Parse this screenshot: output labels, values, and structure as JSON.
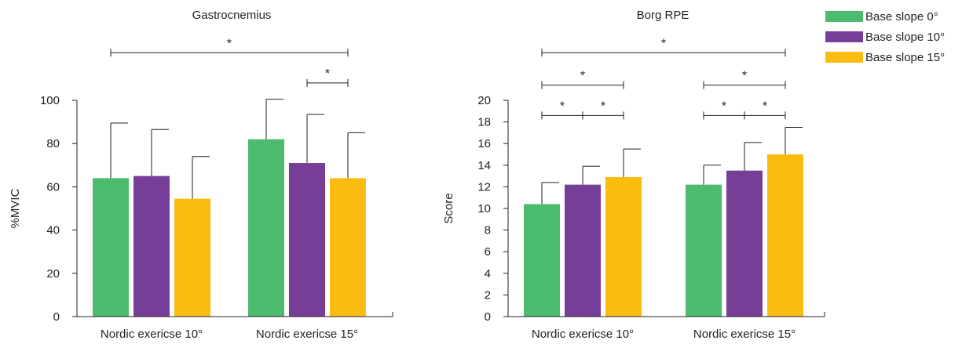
{
  "chart_data": [
    {
      "type": "bar",
      "title": "Gastrocnemius",
      "ylabel": "%MVIC",
      "xlabel": "",
      "ylim": [
        0,
        100
      ],
      "yticks": [
        0,
        20,
        40,
        60,
        80,
        100
      ],
      "categories": [
        "Nordic exericse 10°",
        "Nordic exericse 15°"
      ],
      "series": [
        {
          "name": "Base slope 0°",
          "values": [
            64,
            82
          ],
          "errors": [
            25.5,
            18.5
          ]
        },
        {
          "name": "Base slope 10°",
          "values": [
            65,
            71
          ],
          "errors": [
            21.5,
            22.5
          ]
        },
        {
          "name": "Base slope 15°",
          "values": [
            54.5,
            64
          ],
          "errors": [
            19.5,
            21
          ]
        }
      ],
      "significance": [
        {
          "group": 0,
          "from": 0,
          "group2": 1,
          "to": 2,
          "label": "*",
          "level": 122
        },
        {
          "group": 1,
          "from": 1,
          "group2": 1,
          "to": 2,
          "label": "*",
          "level": 108
        }
      ]
    },
    {
      "type": "bar",
      "title": "Borg RPE",
      "ylabel": "Score",
      "xlabel": "",
      "ylim": [
        0,
        20
      ],
      "yticks": [
        0,
        2,
        4,
        6,
        8,
        10,
        12,
        14,
        16,
        18,
        20
      ],
      "categories": [
        "Nordic exericse 10°",
        "Nordic exericse 15°"
      ],
      "series": [
        {
          "name": "Base slope 0°",
          "values": [
            10.4,
            12.2
          ],
          "errors": [
            2,
            1.8
          ]
        },
        {
          "name": "Base slope 10°",
          "values": [
            12.2,
            13.5
          ],
          "errors": [
            1.7,
            2.6
          ]
        },
        {
          "name": "Base slope 15°",
          "values": [
            12.9,
            15
          ],
          "errors": [
            2.6,
            2.5
          ]
        }
      ],
      "significance": [
        {
          "group": 0,
          "from": 0,
          "group2": 1,
          "to": 2,
          "label": "*",
          "level": 24.4
        },
        {
          "group": 0,
          "from": 0,
          "group2": 0,
          "to": 2,
          "label": "*",
          "level": 21.4
        },
        {
          "group": 0,
          "from": 0,
          "group2": 0,
          "to": 1,
          "label": "*",
          "level": 18.6
        },
        {
          "group": 0,
          "from": 1,
          "group2": 0,
          "to": 2,
          "label": "*",
          "level": 18.6
        },
        {
          "group": 1,
          "from": 0,
          "group2": 1,
          "to": 2,
          "label": "*",
          "level": 21.4
        },
        {
          "group": 1,
          "from": 0,
          "group2": 1,
          "to": 1,
          "label": "*",
          "level": 18.6
        },
        {
          "group": 1,
          "from": 1,
          "group2": 1,
          "to": 2,
          "label": "*",
          "level": 18.6
        }
      ]
    }
  ],
  "legend": [
    {
      "label": "Base slope 0°",
      "color": "#4dbb6d"
    },
    {
      "label": "Base slope 10°",
      "color": "#773e98"
    },
    {
      "label": "Base slope 15°",
      "color": "#fbbb10"
    }
  ],
  "colors": {
    "axis": "#231f20",
    "text": "#231f20"
  }
}
